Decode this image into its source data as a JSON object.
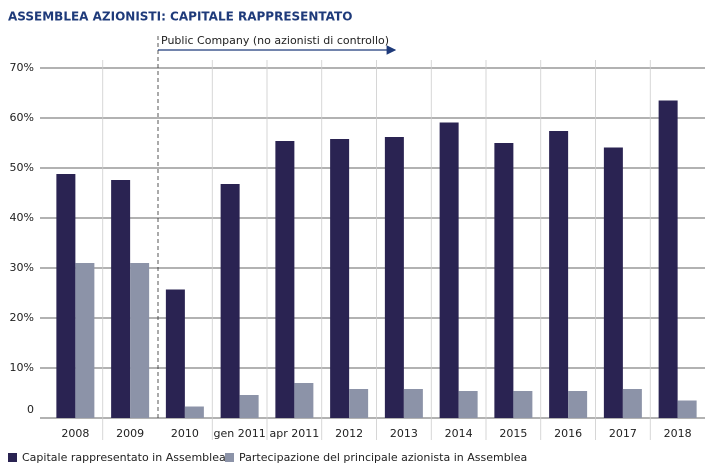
{
  "chart_data": {
    "type": "bar",
    "title": "ASSEMBLEA AZIONISTI: CAPITALE RAPPRESENTATO",
    "annotation": "Public Company (no azionisti di controllo)",
    "categories": [
      "2008",
      "2009",
      "2010",
      "gen 2011",
      "apr 2011",
      "2012",
      "2013",
      "2014",
      "2015",
      "2016",
      "2017",
      "2018"
    ],
    "series": [
      {
        "name": "Capitale rappresentato in Assemblea",
        "color": "#2a2352",
        "values": [
          48.8,
          47.6,
          25.7,
          46.8,
          55.4,
          55.8,
          56.2,
          59.1,
          55.0,
          57.4,
          54.1,
          63.5
        ]
      },
      {
        "name": "Partecipazione del principale azionista in Assemblea",
        "color": "#8c93a8",
        "values": [
          31.0,
          31.0,
          2.3,
          4.6,
          7.0,
          5.8,
          5.8,
          5.4,
          5.4,
          5.4,
          5.8,
          3.5
        ]
      }
    ],
    "ylim": [
      0,
      70
    ],
    "yticks": [
      0,
      {
        "value": 10,
        "label": "10%"
      },
      {
        "value": 20,
        "label": "20%"
      },
      {
        "value": 30,
        "label": "30%"
      },
      {
        "value": 40,
        "label": "40%"
      },
      {
        "value": 50,
        "label": "50%"
      },
      {
        "value": 60,
        "label": "60%"
      },
      {
        "value": 70,
        "label": "70%"
      }
    ],
    "grid": true
  }
}
